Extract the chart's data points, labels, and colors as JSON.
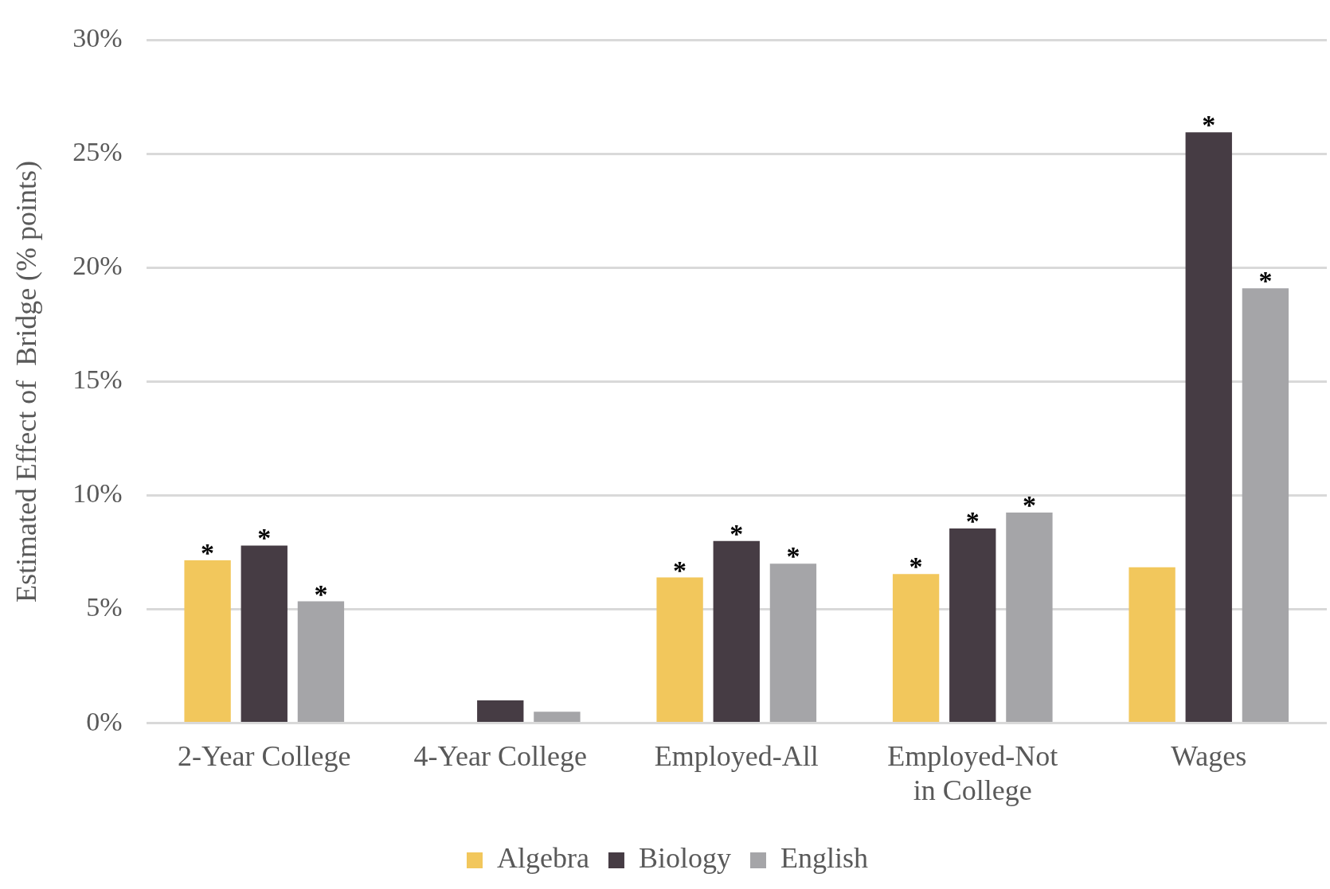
{
  "chart_data": {
    "type": "bar",
    "ylabel": "Estimated Effect of  Bridge (% points)",
    "categories": [
      "2-Year College",
      "4-Year College",
      "Employed-All",
      "Employed-Not in College",
      "Wages"
    ],
    "series": [
      {
        "name": "Algebra",
        "color": "#f2c75c",
        "values": [
          7.15,
          null,
          6.4,
          6.55,
          6.85
        ],
        "value_labels": [
          "*",
          null,
          "*",
          "*",
          null
        ]
      },
      {
        "name": "Biology",
        "color": "#463c44",
        "values": [
          7.8,
          1.0,
          8.0,
          8.55,
          25.95
        ],
        "value_labels": [
          "*",
          null,
          "*",
          "*",
          "*"
        ]
      },
      {
        "name": "English",
        "color": "#a5a5a8",
        "values": [
          5.35,
          0.5,
          7.0,
          9.25,
          19.1
        ],
        "value_labels": [
          "*",
          null,
          "*",
          "*",
          "*"
        ]
      }
    ],
    "ylim": [
      0,
      30
    ],
    "yticks": [
      {
        "value": 0,
        "label": "0%"
      },
      {
        "value": 5,
        "label": "5%"
      },
      {
        "value": 10,
        "label": "10%"
      },
      {
        "value": 15,
        "label": "15%"
      },
      {
        "value": 20,
        "label": "20%"
      },
      {
        "value": 25,
        "label": "25%"
      },
      {
        "value": 30,
        "label": "30%"
      }
    ],
    "grid": "y",
    "legend": "bottom"
  }
}
